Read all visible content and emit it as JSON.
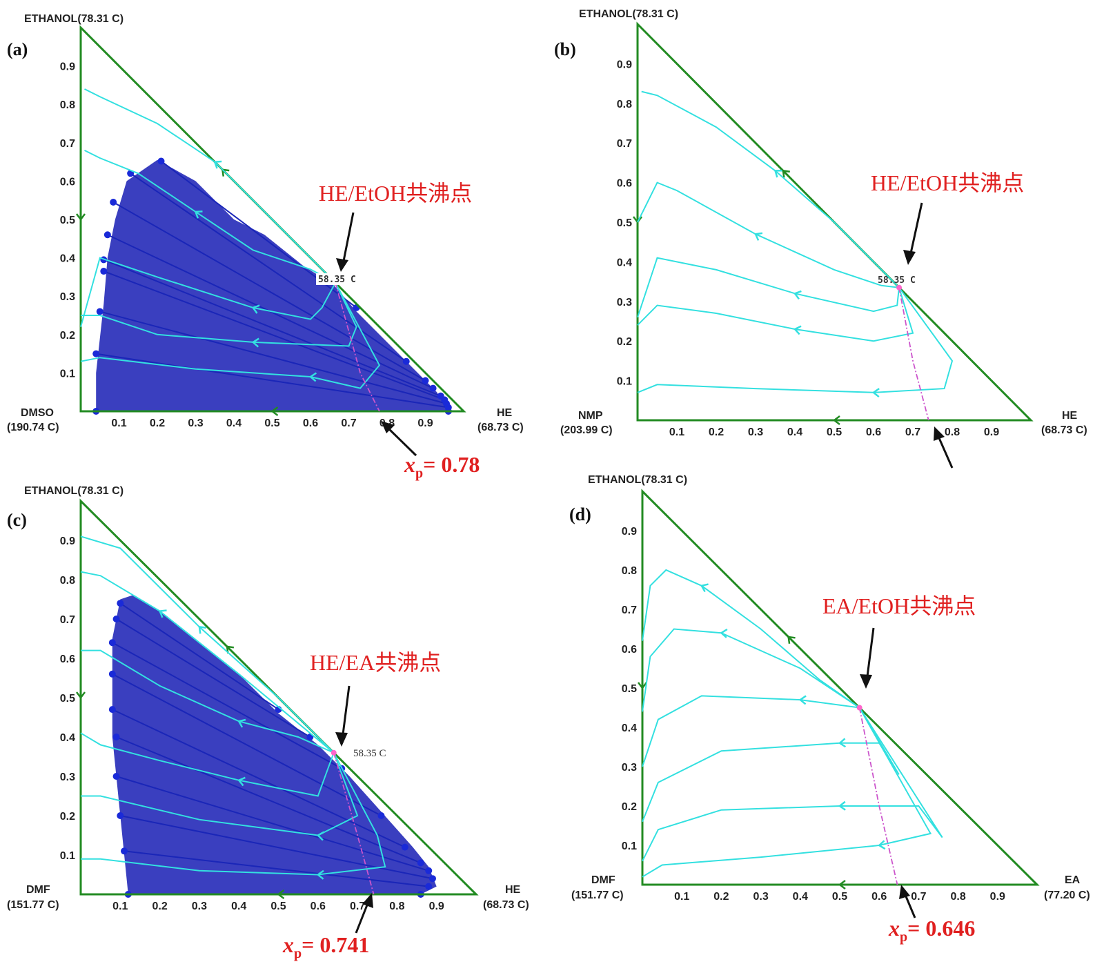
{
  "colors": {
    "triangle": "#228B22",
    "curve": "#33e0e0",
    "region": "#3a3fbf",
    "tieline": "#1a26b8",
    "dot": "#1a2ad8",
    "dashed": "#cc55cc",
    "annotation": "#e02020",
    "arrow": "#111111"
  },
  "chart_data": [
    {
      "type": "ternary-residue-curve-map",
      "panel": "(a)",
      "vertices": {
        "top": "ETHANOL(78.31 C)",
        "left_name": "DMSO",
        "left_temp": "(190.74 C)",
        "right_name": "HE",
        "right_temp": "(68.73 C)"
      },
      "x_ticks": [
        "0.1",
        "0.2",
        "0.3",
        "0.4",
        "0.5",
        "0.6",
        "0.7",
        "0.8",
        "0.9"
      ],
      "y_ticks": [
        "0.1",
        "0.2",
        "0.3",
        "0.4",
        "0.5",
        "0.6",
        "0.7",
        "0.8",
        "0.9"
      ],
      "axis_range": [
        0,
        1
      ],
      "azeotrope": {
        "label": "HE/EtOH共沸点",
        "temperature": "58.35 C",
        "x": 0.665,
        "y": 0.335
      },
      "xp_label": {
        "prefix": "x",
        "sub": "p",
        "suffix": "= 0.78",
        "value": 0.78
      },
      "two_liquid_region": {
        "boundary": [
          [
            0.04,
            0.0
          ],
          [
            0.04,
            0.1
          ],
          [
            0.06,
            0.28
          ],
          [
            0.07,
            0.4
          ],
          [
            0.09,
            0.5
          ],
          [
            0.12,
            0.6
          ],
          [
            0.2,
            0.655
          ],
          [
            0.3,
            0.6
          ],
          [
            0.4,
            0.5
          ],
          [
            0.48,
            0.46
          ],
          [
            0.58,
            0.38
          ],
          [
            0.66,
            0.33
          ],
          [
            0.72,
            0.26
          ],
          [
            0.8,
            0.18
          ],
          [
            0.88,
            0.1
          ],
          [
            0.93,
            0.05
          ],
          [
            0.96,
            0.0
          ]
        ],
        "left_ends": [
          [
            0.04,
            0.0
          ],
          [
            0.04,
            0.15
          ],
          [
            0.05,
            0.26
          ],
          [
            0.06,
            0.365
          ],
          [
            0.06,
            0.395
          ],
          [
            0.07,
            0.46
          ],
          [
            0.085,
            0.545
          ],
          [
            0.13,
            0.62
          ],
          [
            0.21,
            0.652
          ]
        ],
        "right_ends": [
          [
            0.96,
            0.0
          ],
          [
            0.96,
            0.01
          ],
          [
            0.955,
            0.02
          ],
          [
            0.95,
            0.03
          ],
          [
            0.94,
            0.04
          ],
          [
            0.92,
            0.06
          ],
          [
            0.9,
            0.08
          ],
          [
            0.85,
            0.13
          ],
          [
            0.72,
            0.27
          ]
        ]
      },
      "residue_curves": [
        [
          [
            0.01,
            0.84
          ],
          [
            0.05,
            0.82
          ],
          [
            0.2,
            0.75
          ],
          [
            0.35,
            0.65
          ],
          [
            0.5,
            0.5
          ],
          [
            0.62,
            0.38
          ],
          [
            0.665,
            0.335
          ]
        ],
        [
          [
            0.01,
            0.68
          ],
          [
            0.05,
            0.66
          ],
          [
            0.15,
            0.62
          ],
          [
            0.3,
            0.52
          ],
          [
            0.45,
            0.42
          ],
          [
            0.6,
            0.37
          ],
          [
            0.665,
            0.335
          ]
        ],
        [
          [
            0.0,
            0.22
          ],
          [
            0.05,
            0.4
          ],
          [
            0.2,
            0.35
          ],
          [
            0.45,
            0.27
          ],
          [
            0.6,
            0.24
          ],
          [
            0.63,
            0.27
          ],
          [
            0.665,
            0.335
          ]
        ],
        [
          [
            0.0,
            0.25
          ],
          [
            0.05,
            0.25
          ],
          [
            0.2,
            0.2
          ],
          [
            0.45,
            0.18
          ],
          [
            0.7,
            0.17
          ],
          [
            0.72,
            0.22
          ],
          [
            0.665,
            0.335
          ]
        ],
        [
          [
            0.0,
            0.13
          ],
          [
            0.05,
            0.14
          ],
          [
            0.3,
            0.11
          ],
          [
            0.6,
            0.09
          ],
          [
            0.73,
            0.06
          ],
          [
            0.78,
            0.12
          ],
          [
            0.665,
            0.335
          ]
        ]
      ],
      "distillation_boundary": [
        [
          0.665,
          0.335
        ],
        [
          0.73,
          0.1
        ],
        [
          0.78,
          0.0
        ]
      ]
    },
    {
      "type": "ternary-residue-curve-map",
      "panel": "(b)",
      "vertices": {
        "top": "ETHANOL(78.31 C)",
        "left_name": "NMP",
        "left_temp": "(203.99 C)",
        "right_name": "HE",
        "right_temp": "(68.73 C)"
      },
      "x_ticks": [
        "0.1",
        "0.2",
        "0.3",
        "0.4",
        "0.5",
        "0.6",
        "0.7",
        "0.8",
        "0.9"
      ],
      "y_ticks": [
        "0.1",
        "0.2",
        "0.3",
        "0.4",
        "0.5",
        "0.6",
        "0.7",
        "0.8",
        "0.9"
      ],
      "axis_range": [
        0,
        1
      ],
      "azeotrope": {
        "label": "HE/EtOH共沸点",
        "temperature": "58.35 C",
        "x": 0.665,
        "y": 0.335
      },
      "residue_curves": [
        [
          [
            0.01,
            0.83
          ],
          [
            0.05,
            0.82
          ],
          [
            0.2,
            0.74
          ],
          [
            0.35,
            0.63
          ],
          [
            0.5,
            0.5
          ],
          [
            0.62,
            0.38
          ],
          [
            0.665,
            0.335
          ]
        ],
        [
          [
            0.0,
            0.5
          ],
          [
            0.05,
            0.6
          ],
          [
            0.1,
            0.58
          ],
          [
            0.3,
            0.47
          ],
          [
            0.5,
            0.38
          ],
          [
            0.62,
            0.34
          ],
          [
            0.665,
            0.335
          ]
        ],
        [
          [
            0.0,
            0.26
          ],
          [
            0.05,
            0.41
          ],
          [
            0.2,
            0.38
          ],
          [
            0.4,
            0.32
          ],
          [
            0.6,
            0.275
          ],
          [
            0.66,
            0.29
          ],
          [
            0.665,
            0.335
          ]
        ],
        [
          [
            0.0,
            0.24
          ],
          [
            0.05,
            0.29
          ],
          [
            0.2,
            0.27
          ],
          [
            0.4,
            0.23
          ],
          [
            0.6,
            0.2
          ],
          [
            0.7,
            0.22
          ],
          [
            0.665,
            0.335
          ]
        ],
        [
          [
            0.0,
            0.07
          ],
          [
            0.05,
            0.09
          ],
          [
            0.3,
            0.08
          ],
          [
            0.6,
            0.07
          ],
          [
            0.78,
            0.08
          ],
          [
            0.8,
            0.15
          ],
          [
            0.665,
            0.335
          ]
        ]
      ],
      "distillation_boundary": [
        [
          0.665,
          0.335
        ],
        [
          0.7,
          0.15
        ],
        [
          0.74,
          0.0
        ]
      ]
    },
    {
      "type": "ternary-residue-curve-map",
      "panel": "(c)",
      "vertices": {
        "top": "ETHANOL(78.31 C)",
        "left_name": "DMF",
        "left_temp": "(151.77 C)",
        "right_name": "HE",
        "right_temp": "(68.73 C)"
      },
      "x_ticks": [
        "0.1",
        "0.2",
        "0.3",
        "0.4",
        "0.5",
        "0.6",
        "0.7",
        "0.8",
        "0.9"
      ],
      "y_ticks": [
        "0.1",
        "0.2",
        "0.3",
        "0.4",
        "0.5",
        "0.6",
        "0.7",
        "0.8",
        "0.9"
      ],
      "axis_range": [
        0,
        1
      ],
      "azeotrope": {
        "label": "HE/EA共沸点",
        "temperature": "58.35 C",
        "x": 0.64,
        "y": 0.36
      },
      "xp_label": {
        "prefix": "x",
        "sub": "p",
        "suffix": "= 0.741",
        "value": 0.741
      },
      "two_liquid_region": {
        "boundary": [
          [
            0.12,
            0.0
          ],
          [
            0.1,
            0.2
          ],
          [
            0.08,
            0.4
          ],
          [
            0.08,
            0.65
          ],
          [
            0.1,
            0.75
          ],
          [
            0.13,
            0.76
          ],
          [
            0.2,
            0.72
          ],
          [
            0.3,
            0.64
          ],
          [
            0.4,
            0.56
          ],
          [
            0.5,
            0.46
          ],
          [
            0.6,
            0.38
          ],
          [
            0.68,
            0.3
          ],
          [
            0.76,
            0.21
          ],
          [
            0.84,
            0.12
          ],
          [
            0.88,
            0.07
          ],
          [
            0.9,
            0.02
          ],
          [
            0.86,
            0.0
          ]
        ],
        "left_ends": [
          [
            0.12,
            0.0
          ],
          [
            0.11,
            0.11
          ],
          [
            0.1,
            0.2
          ],
          [
            0.09,
            0.3
          ],
          [
            0.09,
            0.4
          ],
          [
            0.08,
            0.47
          ],
          [
            0.08,
            0.56
          ],
          [
            0.08,
            0.64
          ],
          [
            0.09,
            0.7
          ],
          [
            0.1,
            0.74
          ]
        ],
        "right_ends": [
          [
            0.86,
            0.0
          ],
          [
            0.88,
            0.02
          ],
          [
            0.89,
            0.04
          ],
          [
            0.88,
            0.06
          ],
          [
            0.86,
            0.08
          ],
          [
            0.82,
            0.12
          ],
          [
            0.76,
            0.2
          ],
          [
            0.66,
            0.32
          ],
          [
            0.58,
            0.4
          ],
          [
            0.5,
            0.47
          ]
        ]
      },
      "residue_curves": [
        [
          [
            0.0,
            0.91
          ],
          [
            0.1,
            0.88
          ],
          [
            0.3,
            0.68
          ],
          [
            0.5,
            0.5
          ],
          [
            0.64,
            0.36
          ]
        ],
        [
          [
            0.0,
            0.82
          ],
          [
            0.05,
            0.81
          ],
          [
            0.2,
            0.72
          ],
          [
            0.4,
            0.56
          ],
          [
            0.64,
            0.36
          ]
        ],
        [
          [
            0.0,
            0.62
          ],
          [
            0.05,
            0.62
          ],
          [
            0.2,
            0.53
          ],
          [
            0.4,
            0.44
          ],
          [
            0.55,
            0.4
          ],
          [
            0.64,
            0.36
          ]
        ],
        [
          [
            0.0,
            0.41
          ],
          [
            0.05,
            0.38
          ],
          [
            0.2,
            0.34
          ],
          [
            0.4,
            0.29
          ],
          [
            0.6,
            0.25
          ],
          [
            0.64,
            0.36
          ]
        ],
        [
          [
            0.0,
            0.25
          ],
          [
            0.05,
            0.25
          ],
          [
            0.3,
            0.19
          ],
          [
            0.6,
            0.15
          ],
          [
            0.7,
            0.2
          ],
          [
            0.64,
            0.36
          ]
        ],
        [
          [
            0.0,
            0.09
          ],
          [
            0.05,
            0.09
          ],
          [
            0.3,
            0.06
          ],
          [
            0.6,
            0.05
          ],
          [
            0.77,
            0.07
          ],
          [
            0.75,
            0.15
          ],
          [
            0.64,
            0.36
          ]
        ]
      ],
      "distillation_boundary": [
        [
          0.64,
          0.36
        ],
        [
          0.7,
          0.15
        ],
        [
          0.741,
          0.0
        ]
      ]
    },
    {
      "type": "ternary-residue-curve-map",
      "panel": "(d)",
      "vertices": {
        "top": "ETHANOL(78.31 C)",
        "left_name": "DMF",
        "left_temp": "(151.77 C)",
        "right_name": "EA",
        "right_temp": "(77.20 C)"
      },
      "x_ticks": [
        "0.1",
        "0.2",
        "0.3",
        "0.4",
        "0.5",
        "0.6",
        "0.7",
        "0.8",
        "0.9"
      ],
      "y_ticks": [
        "0.1",
        "0.2",
        "0.3",
        "0.4",
        "0.5",
        "0.6",
        "0.7",
        "0.8",
        "0.9"
      ],
      "axis_range": [
        0,
        1
      ],
      "azeotrope": {
        "label": "EA/EtOH共沸点",
        "temperature": "",
        "x": 0.55,
        "y": 0.45
      },
      "xp_label": {
        "prefix": "x",
        "sub": "p",
        "suffix": "= 0.646",
        "value": 0.646
      },
      "residue_curves": [
        [
          [
            0.0,
            0.62
          ],
          [
            0.02,
            0.76
          ],
          [
            0.06,
            0.8
          ],
          [
            0.15,
            0.76
          ],
          [
            0.3,
            0.65
          ],
          [
            0.45,
            0.52
          ],
          [
            0.55,
            0.45
          ]
        ],
        [
          [
            0.0,
            0.44
          ],
          [
            0.02,
            0.58
          ],
          [
            0.08,
            0.65
          ],
          [
            0.2,
            0.64
          ],
          [
            0.4,
            0.55
          ],
          [
            0.55,
            0.45
          ]
        ],
        [
          [
            0.0,
            0.3
          ],
          [
            0.04,
            0.42
          ],
          [
            0.15,
            0.48
          ],
          [
            0.4,
            0.47
          ],
          [
            0.55,
            0.45
          ],
          [
            0.58,
            0.4
          ],
          [
            0.55,
            0.45
          ]
        ],
        [
          [
            0.0,
            0.16
          ],
          [
            0.04,
            0.26
          ],
          [
            0.2,
            0.34
          ],
          [
            0.5,
            0.36
          ],
          [
            0.6,
            0.36
          ],
          [
            0.65,
            0.28
          ],
          [
            0.55,
            0.45
          ]
        ],
        [
          [
            0.0,
            0.06
          ],
          [
            0.04,
            0.14
          ],
          [
            0.2,
            0.19
          ],
          [
            0.5,
            0.2
          ],
          [
            0.7,
            0.2
          ],
          [
            0.76,
            0.12
          ],
          [
            0.55,
            0.45
          ]
        ],
        [
          [
            0.0,
            0.02
          ],
          [
            0.05,
            0.05
          ],
          [
            0.3,
            0.07
          ],
          [
            0.6,
            0.1
          ],
          [
            0.73,
            0.13
          ],
          [
            0.55,
            0.45
          ]
        ]
      ],
      "distillation_boundary": [
        [
          0.55,
          0.45
        ],
        [
          0.6,
          0.2
        ],
        [
          0.646,
          0.0
        ]
      ]
    }
  ]
}
